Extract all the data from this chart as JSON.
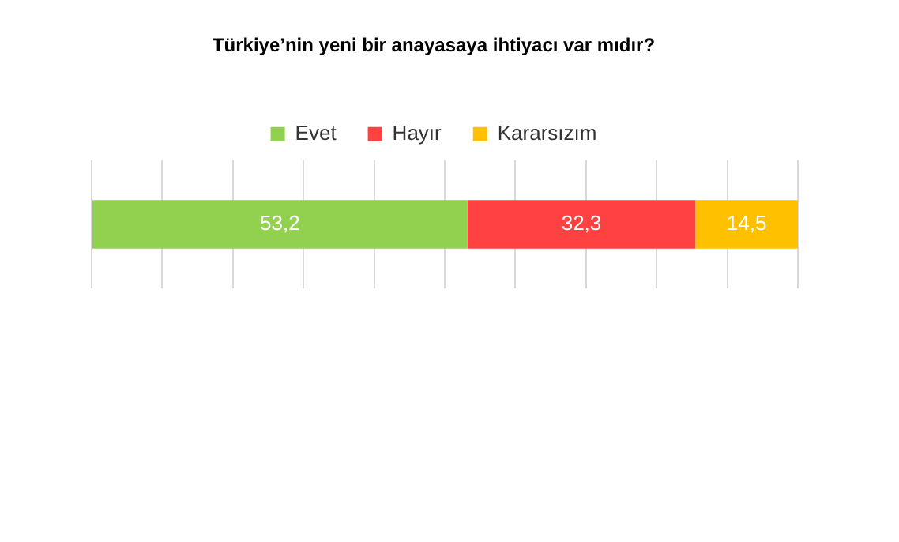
{
  "chart_data": {
    "type": "bar",
    "title": "Türkiye’nin yeni bir anayasaya ihtiyacı var mıdır?",
    "orientation": "horizontal",
    "stacked": true,
    "categories": [
      null
    ],
    "series": [
      {
        "name": "Evet",
        "color": "#92d050",
        "values": [
          53.2
        ],
        "value_labels": [
          "53,2"
        ]
      },
      {
        "name": "Hayır",
        "color": "#ff4141",
        "values": [
          32.3
        ],
        "value_labels": [
          "32,3"
        ]
      },
      {
        "name": "Kararsızım",
        "color": "#ffc000",
        "values": [
          14.5
        ],
        "value_labels": [
          "14,5"
        ]
      }
    ],
    "xlim": [
      0,
      100
    ],
    "xticks": [
      {
        "value": 0,
        "label": null
      },
      {
        "value": 10,
        "label": null
      },
      {
        "value": 20,
        "label": null
      },
      {
        "value": 30,
        "label": null
      },
      {
        "value": 40,
        "label": null
      },
      {
        "value": 50,
        "label": null
      },
      {
        "value": 60,
        "label": null
      },
      {
        "value": 70,
        "label": null
      },
      {
        "value": 80,
        "label": null
      },
      {
        "value": 90,
        "label": null
      },
      {
        "value": 100,
        "label": null
      }
    ],
    "grid": "x",
    "legend": "top"
  }
}
